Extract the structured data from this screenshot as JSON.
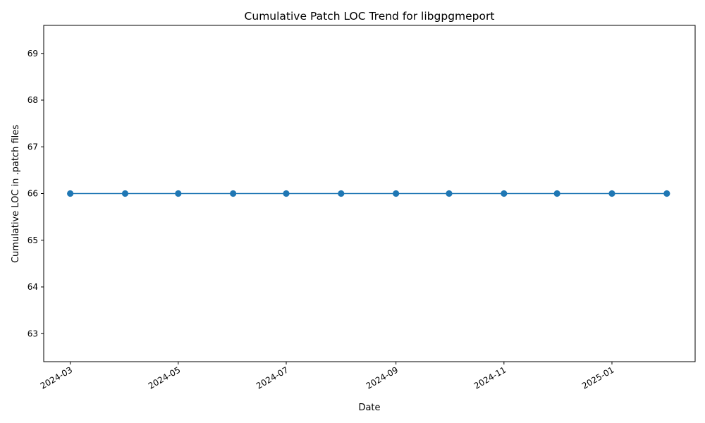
{
  "chart_data": {
    "type": "line",
    "title": "Cumulative Patch LOC Trend for libgpgmeport",
    "xlabel": "Date",
    "ylabel": "Cumulative LOC in .patch files",
    "x": [
      "2024-03-01",
      "2024-04-01",
      "2024-05-01",
      "2024-06-01",
      "2024-07-01",
      "2024-08-01",
      "2024-09-01",
      "2024-10-01",
      "2024-11-01",
      "2024-12-01",
      "2025-01-01",
      "2025-02-01"
    ],
    "series": [
      {
        "values": [
          66,
          66,
          66,
          66,
          66,
          66,
          66,
          66,
          66,
          66,
          66,
          66
        ],
        "color": "#1f77b4",
        "marker": "circle"
      }
    ],
    "xlim": [
      "2024-02-15",
      "2025-02-17"
    ],
    "ylim": [
      62.4,
      69.6
    ],
    "x_ticks": [
      "2024-03",
      "2024-05",
      "2024-07",
      "2024-09",
      "2024-11",
      "2025-01"
    ],
    "y_ticks": [
      63,
      64,
      65,
      66,
      67,
      68,
      69
    ],
    "grid": false,
    "legend": "none"
  }
}
